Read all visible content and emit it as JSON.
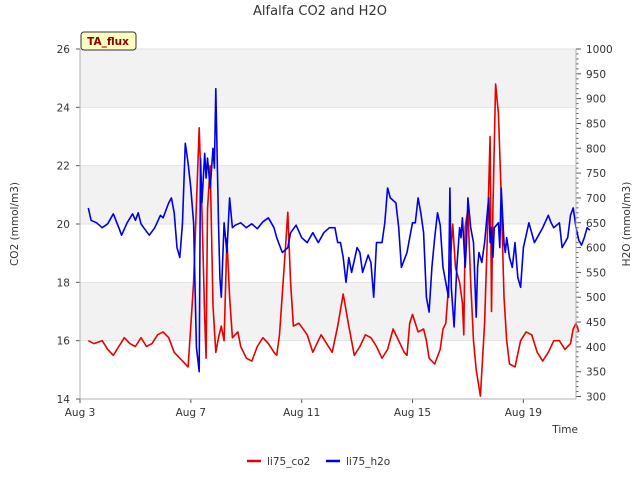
{
  "chart_data": {
    "type": "line",
    "title": "Alfalfa CO2 and H2O",
    "xlabel": "Time",
    "ylabel_left": "CO2 (mmol/m3)",
    "ylabel_right": "H2O (mmol/m3)",
    "badge": "TA_flux",
    "x_ticks": [
      {
        "day": 3,
        "label": "Aug 3"
      },
      {
        "day": 7,
        "label": "Aug 7"
      },
      {
        "day": 11,
        "label": "Aug 11"
      },
      {
        "day": 15,
        "label": "Aug 15"
      },
      {
        "day": 19,
        "label": "Aug 19"
      }
    ],
    "xlim_days": [
      3,
      20.9
    ],
    "ylim_left": [
      14,
      26
    ],
    "left_ticks": [
      14,
      16,
      18,
      20,
      22,
      24,
      26
    ],
    "ylim_right": [
      295,
      1000
    ],
    "right_ticks": [
      300,
      350,
      400,
      450,
      500,
      550,
      600,
      650,
      700,
      750,
      800,
      850,
      900,
      950,
      1000
    ],
    "grid": "horizontal bands",
    "legend_position": "bottom-center",
    "series": [
      {
        "name": "li75_co2",
        "axis": "left",
        "color": "#e60000",
        "points": [
          [
            3.3,
            16.0
          ],
          [
            3.5,
            15.9
          ],
          [
            3.8,
            16.0
          ],
          [
            4.0,
            15.7
          ],
          [
            4.2,
            15.5
          ],
          [
            4.4,
            15.8
          ],
          [
            4.6,
            16.1
          ],
          [
            4.8,
            15.9
          ],
          [
            5.0,
            15.8
          ],
          [
            5.2,
            16.1
          ],
          [
            5.4,
            15.8
          ],
          [
            5.6,
            15.9
          ],
          [
            5.8,
            16.2
          ],
          [
            6.0,
            16.3
          ],
          [
            6.2,
            16.1
          ],
          [
            6.4,
            15.6
          ],
          [
            6.6,
            15.4
          ],
          [
            6.9,
            15.1
          ],
          [
            7.0,
            16.5
          ],
          [
            7.1,
            18.0
          ],
          [
            7.3,
            23.3
          ],
          [
            7.4,
            20.5
          ],
          [
            7.5,
            16.8
          ],
          [
            7.55,
            15.4
          ],
          [
            7.6,
            20.5
          ],
          [
            7.7,
            22.0
          ],
          [
            7.8,
            17.2
          ],
          [
            7.9,
            15.6
          ],
          [
            8.0,
            16.1
          ],
          [
            8.1,
            16.5
          ],
          [
            8.2,
            16.0
          ],
          [
            8.3,
            19.5
          ],
          [
            8.4,
            17.5
          ],
          [
            8.5,
            16.1
          ],
          [
            8.7,
            16.3
          ],
          [
            8.8,
            15.8
          ],
          [
            9.0,
            15.4
          ],
          [
            9.2,
            15.3
          ],
          [
            9.4,
            15.8
          ],
          [
            9.6,
            16.1
          ],
          [
            9.8,
            15.9
          ],
          [
            10.0,
            15.6
          ],
          [
            10.1,
            15.5
          ],
          [
            10.2,
            16.2
          ],
          [
            10.4,
            19.0
          ],
          [
            10.5,
            20.4
          ],
          [
            10.6,
            18.0
          ],
          [
            10.7,
            16.5
          ],
          [
            10.9,
            16.6
          ],
          [
            11.2,
            16.2
          ],
          [
            11.4,
            15.6
          ],
          [
            11.7,
            16.2
          ],
          [
            11.9,
            15.9
          ],
          [
            12.1,
            15.6
          ],
          [
            12.3,
            16.5
          ],
          [
            12.5,
            17.6
          ],
          [
            12.7,
            16.5
          ],
          [
            12.9,
            15.5
          ],
          [
            13.1,
            15.8
          ],
          [
            13.3,
            16.2
          ],
          [
            13.5,
            16.1
          ],
          [
            13.7,
            15.8
          ],
          [
            13.9,
            15.4
          ],
          [
            14.1,
            15.7
          ],
          [
            14.3,
            16.4
          ],
          [
            14.5,
            16.0
          ],
          [
            14.7,
            15.6
          ],
          [
            14.8,
            15.5
          ],
          [
            14.9,
            16.6
          ],
          [
            15.0,
            16.9
          ],
          [
            15.2,
            16.3
          ],
          [
            15.4,
            16.4
          ],
          [
            15.5,
            16.0
          ],
          [
            15.6,
            15.4
          ],
          [
            15.8,
            15.2
          ],
          [
            16.0,
            15.7
          ],
          [
            16.1,
            16.4
          ],
          [
            16.2,
            16.6
          ],
          [
            16.35,
            18.5
          ],
          [
            16.45,
            20.0
          ],
          [
            16.55,
            18.5
          ],
          [
            16.7,
            18.0
          ],
          [
            16.8,
            17.3
          ],
          [
            16.85,
            16.2
          ],
          [
            16.9,
            19.9
          ],
          [
            17.0,
            20.5
          ],
          [
            17.1,
            18.0
          ],
          [
            17.2,
            16.0
          ],
          [
            17.3,
            15.0
          ],
          [
            17.4,
            14.4
          ],
          [
            17.45,
            14.1
          ],
          [
            17.6,
            16.6
          ],
          [
            17.7,
            19.5
          ],
          [
            17.8,
            23.0
          ],
          [
            17.85,
            17.0
          ],
          [
            17.9,
            20.5
          ],
          [
            18.0,
            24.8
          ],
          [
            18.1,
            23.8
          ],
          [
            18.2,
            21.0
          ],
          [
            18.3,
            17.5
          ],
          [
            18.4,
            16.0
          ],
          [
            18.5,
            15.2
          ],
          [
            18.7,
            15.1
          ],
          [
            18.9,
            16.0
          ],
          [
            19.1,
            16.3
          ],
          [
            19.3,
            16.2
          ],
          [
            19.5,
            15.6
          ],
          [
            19.7,
            15.3
          ],
          [
            19.9,
            15.6
          ],
          [
            20.1,
            16.0
          ],
          [
            20.3,
            16.0
          ],
          [
            20.5,
            15.7
          ],
          [
            20.7,
            15.9
          ],
          [
            20.8,
            16.4
          ],
          [
            20.9,
            16.6
          ],
          [
            21.0,
            16.3
          ]
        ]
      },
      {
        "name": "li75_h2o",
        "axis": "right",
        "color": "#0000e6",
        "points": [
          [
            3.3,
            680
          ],
          [
            3.4,
            655
          ],
          [
            3.6,
            650
          ],
          [
            3.8,
            640
          ],
          [
            4.0,
            648
          ],
          [
            4.2,
            668
          ],
          [
            4.4,
            640
          ],
          [
            4.5,
            625
          ],
          [
            4.7,
            650
          ],
          [
            4.9,
            668
          ],
          [
            5.0,
            655
          ],
          [
            5.1,
            670
          ],
          [
            5.2,
            648
          ],
          [
            5.3,
            640
          ],
          [
            5.5,
            625
          ],
          [
            5.7,
            640
          ],
          [
            5.9,
            665
          ],
          [
            6.0,
            660
          ],
          [
            6.2,
            690
          ],
          [
            6.3,
            700
          ],
          [
            6.4,
            670
          ],
          [
            6.5,
            600
          ],
          [
            6.6,
            580
          ],
          [
            6.7,
            650
          ],
          [
            6.8,
            810
          ],
          [
            6.9,
            770
          ],
          [
            7.0,
            720
          ],
          [
            7.1,
            650
          ],
          [
            7.2,
            400
          ],
          [
            7.3,
            350
          ],
          [
            7.35,
            780
          ],
          [
            7.4,
            690
          ],
          [
            7.5,
            790
          ],
          [
            7.55,
            740
          ],
          [
            7.6,
            780
          ],
          [
            7.7,
            720
          ],
          [
            7.8,
            800
          ],
          [
            7.85,
            760
          ],
          [
            7.9,
            920
          ],
          [
            8.0,
            650
          ],
          [
            8.05,
            540
          ],
          [
            8.1,
            500
          ],
          [
            8.2,
            650
          ],
          [
            8.3,
            590
          ],
          [
            8.4,
            700
          ],
          [
            8.5,
            640
          ],
          [
            8.6,
            645
          ],
          [
            8.8,
            650
          ],
          [
            9.0,
            640
          ],
          [
            9.2,
            648
          ],
          [
            9.4,
            638
          ],
          [
            9.6,
            652
          ],
          [
            9.8,
            660
          ],
          [
            10.0,
            640
          ],
          [
            10.1,
            620
          ],
          [
            10.3,
            590
          ],
          [
            10.5,
            600
          ],
          [
            10.6,
            630
          ],
          [
            10.8,
            645
          ],
          [
            11.0,
            620
          ],
          [
            11.2,
            610
          ],
          [
            11.4,
            630
          ],
          [
            11.6,
            610
          ],
          [
            11.8,
            630
          ],
          [
            12.0,
            640
          ],
          [
            12.2,
            640
          ],
          [
            12.3,
            610
          ],
          [
            12.4,
            610
          ],
          [
            12.5,
            580
          ],
          [
            12.6,
            530
          ],
          [
            12.7,
            580
          ],
          [
            12.8,
            550
          ],
          [
            13.0,
            600
          ],
          [
            13.1,
            590
          ],
          [
            13.2,
            550
          ],
          [
            13.4,
            585
          ],
          [
            13.5,
            570
          ],
          [
            13.6,
            500
          ],
          [
            13.7,
            610
          ],
          [
            13.9,
            610
          ],
          [
            14.0,
            650
          ],
          [
            14.1,
            720
          ],
          [
            14.2,
            700
          ],
          [
            14.4,
            690
          ],
          [
            14.5,
            640
          ],
          [
            14.6,
            560
          ],
          [
            14.8,
            590
          ],
          [
            14.9,
            620
          ],
          [
            15.0,
            650
          ],
          [
            15.1,
            650
          ],
          [
            15.2,
            700
          ],
          [
            15.3,
            670
          ],
          [
            15.4,
            630
          ],
          [
            15.5,
            500
          ],
          [
            15.6,
            470
          ],
          [
            15.7,
            560
          ],
          [
            15.8,
            620
          ],
          [
            15.9,
            670
          ],
          [
            16.0,
            645
          ],
          [
            16.1,
            560
          ],
          [
            16.3,
            500
          ],
          [
            16.35,
            720
          ],
          [
            16.4,
            520
          ],
          [
            16.5,
            440
          ],
          [
            16.6,
            560
          ],
          [
            16.7,
            640
          ],
          [
            16.75,
            620
          ],
          [
            16.8,
            660
          ],
          [
            16.9,
            560
          ],
          [
            16.95,
            610
          ],
          [
            17.0,
            700
          ],
          [
            17.1,
            640
          ],
          [
            17.2,
            610
          ],
          [
            17.3,
            460
          ],
          [
            17.35,
            560
          ],
          [
            17.4,
            590
          ],
          [
            17.5,
            570
          ],
          [
            17.6,
            610
          ],
          [
            17.7,
            670
          ],
          [
            17.75,
            700
          ],
          [
            17.8,
            610
          ],
          [
            17.85,
            640
          ],
          [
            17.9,
            580
          ],
          [
            17.95,
            640
          ],
          [
            18.1,
            650
          ],
          [
            18.15,
            600
          ],
          [
            18.2,
            720
          ],
          [
            18.3,
            610
          ],
          [
            18.35,
            590
          ],
          [
            18.4,
            620
          ],
          [
            18.5,
            580
          ],
          [
            18.6,
            560
          ],
          [
            18.7,
            610
          ],
          [
            18.8,
            540
          ],
          [
            18.9,
            520
          ],
          [
            19.0,
            600
          ],
          [
            19.2,
            650
          ],
          [
            19.4,
            610
          ],
          [
            19.5,
            620
          ],
          [
            19.7,
            640
          ],
          [
            19.9,
            665
          ],
          [
            20.0,
            650
          ],
          [
            20.1,
            640
          ],
          [
            20.3,
            650
          ],
          [
            20.4,
            600
          ],
          [
            20.6,
            620
          ],
          [
            20.7,
            665
          ],
          [
            20.8,
            680
          ],
          [
            20.9,
            640
          ],
          [
            21.0,
            615
          ],
          [
            21.1,
            605
          ],
          [
            21.2,
            620
          ],
          [
            21.3,
            640
          ],
          [
            21.4,
            635
          ]
        ]
      }
    ]
  }
}
